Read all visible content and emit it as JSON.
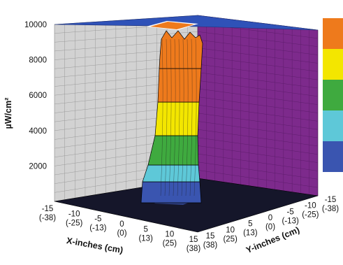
{
  "chart_data": {
    "type": "3d-surface",
    "title": "",
    "zlabel": "µW/cm²",
    "z_ticks": [
      "10000",
      "8000",
      "6000",
      "4000",
      "2000"
    ],
    "zlim": [
      0,
      10000
    ],
    "xlabel": "X-inches (cm)",
    "x_ticks": [
      {
        "in": "-15",
        "cm": "(-38)"
      },
      {
        "in": "-10",
        "cm": "(-25)"
      },
      {
        "in": "-5",
        "cm": "(-13)"
      },
      {
        "in": "0",
        "cm": "(0)"
      },
      {
        "in": "5",
        "cm": "(13)"
      },
      {
        "in": "10",
        "cm": "(25)"
      },
      {
        "in": "15",
        "cm": "(38)"
      }
    ],
    "ylabel": "Y-inches (cm)",
    "y_ticks": [
      {
        "in": "15",
        "cm": "(38)"
      },
      {
        "in": "10",
        "cm": "(25)"
      },
      {
        "in": "5",
        "cm": "(13)"
      },
      {
        "in": "0",
        "cm": "(0)"
      },
      {
        "in": "-5",
        "cm": "(-13)"
      },
      {
        "in": "-10",
        "cm": "(-25)"
      },
      {
        "in": "-15",
        "cm": "(-38)"
      }
    ],
    "peak_value": 10000,
    "color_bands": [
      {
        "from": 0,
        "to": 2000,
        "color": "#3a55b0"
      },
      {
        "from": 2000,
        "to": 4000,
        "color": "#5ec8d8"
      },
      {
        "from": 4000,
        "to": 6000,
        "color": "#3faa3f"
      },
      {
        "from": 6000,
        "to": 8000,
        "color": "#f3e600"
      },
      {
        "from": 8000,
        "to": 10000,
        "color": "#ee7a1c"
      }
    ],
    "wall_colors": {
      "left": "#d2d2d2",
      "right": "#7d2a8c",
      "ceiling": "#2f52b8",
      "floor": "#15162a"
    },
    "grid": true,
    "legend_position": "right"
  }
}
